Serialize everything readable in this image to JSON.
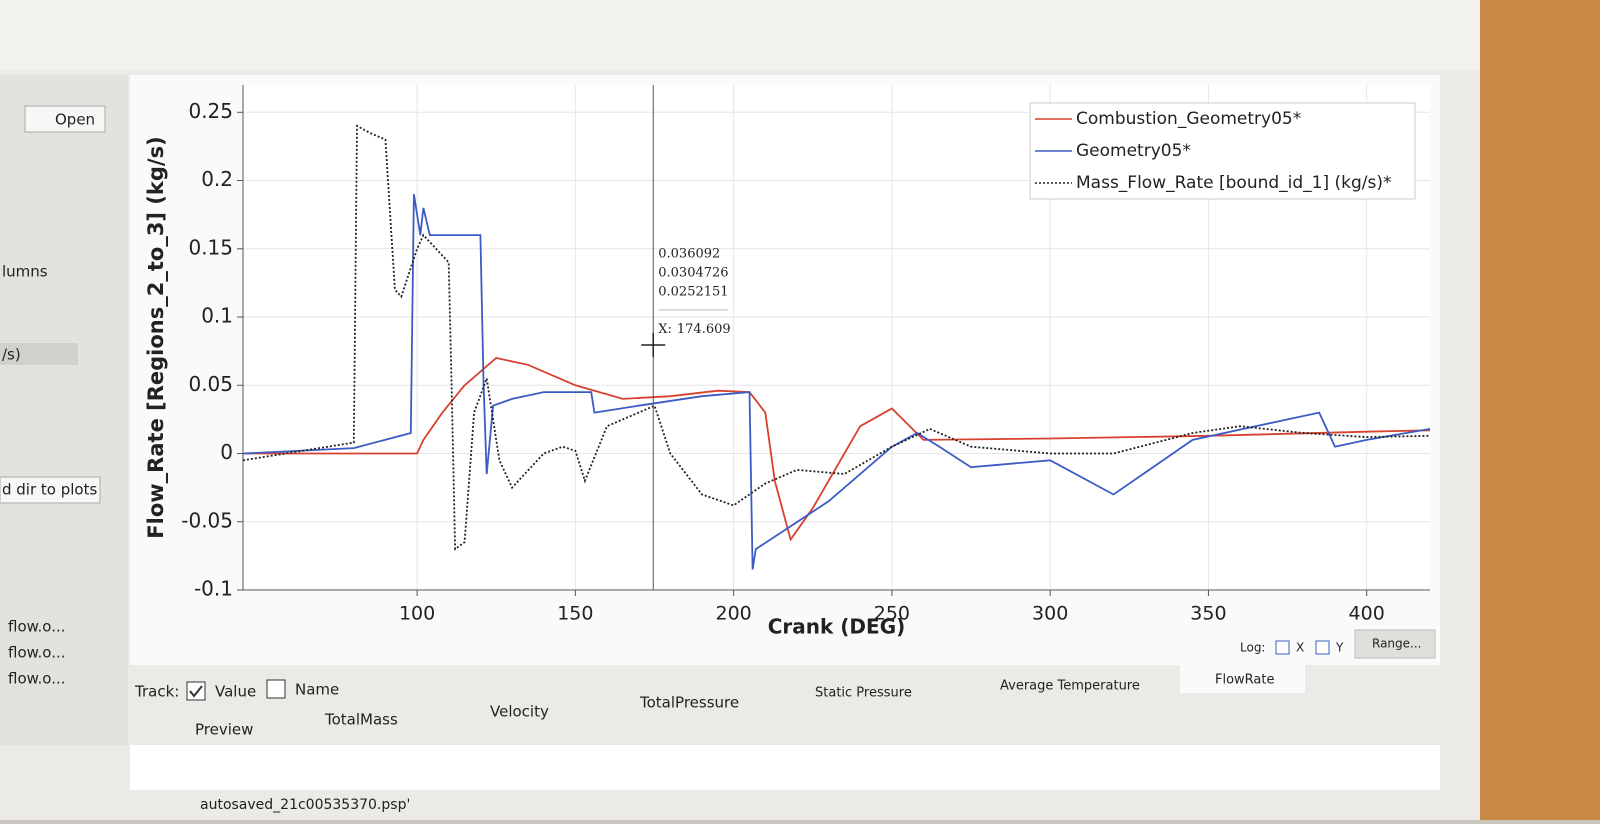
{
  "sidebar": {
    "open": "Open",
    "columns": "lumns",
    "unit": "/s)",
    "add": "d dir to plots",
    "files": [
      "flow.o...",
      "flow.o...",
      "flow.o..."
    ]
  },
  "chart_data": {
    "type": "line",
    "x_label": "Crank (DEG)",
    "y_label": "Flow_Rate [Regions_2_to_3] (kg/s)",
    "xlim": [
      45,
      420
    ],
    "ylim": [
      -0.1,
      0.27
    ],
    "xticks": [
      100,
      150,
      200,
      250,
      300,
      350,
      400
    ],
    "yticks": [
      -0.1,
      -0.05,
      0,
      0.05,
      0.1,
      0.15,
      0.2,
      0.25
    ],
    "grid": true,
    "legend": "top-right",
    "series": [
      {
        "name": "Combustion_Geometry05*",
        "color": "#d8412f",
        "line_style": "solid",
        "x": [
          45,
          100,
          102,
          108,
          115,
          125,
          135,
          150,
          165,
          180,
          195,
          205,
          210,
          213,
          218,
          225,
          240,
          250,
          260,
          300,
          350,
          400,
          420
        ],
        "values": [
          0,
          0,
          0.01,
          0.03,
          0.05,
          0.07,
          0.065,
          0.05,
          0.04,
          0.042,
          0.046,
          0.045,
          0.03,
          -0.02,
          -0.063,
          -0.04,
          0.02,
          0.033,
          0.01,
          0.011,
          0.013,
          0.016,
          0.017
        ]
      },
      {
        "name": "Geometry05*",
        "color": "#3a5cc4",
        "line_style": "solid",
        "x": [
          45,
          80,
          98,
          99,
          101,
          102,
          104,
          120,
          121,
          122,
          124,
          130,
          140,
          155,
          156,
          170,
          190,
          205,
          206,
          207,
          230,
          250,
          258,
          265,
          275,
          300,
          320,
          345,
          375,
          385,
          390,
          400,
          420
        ],
        "values": [
          0,
          0.004,
          0.015,
          0.19,
          0.16,
          0.18,
          0.16,
          0.16,
          0.05,
          -0.015,
          0.035,
          0.04,
          0.045,
          0.045,
          0.03,
          0.035,
          0.042,
          0.045,
          -0.085,
          -0.07,
          -0.035,
          0.005,
          0.015,
          0.005,
          -0.01,
          -0.005,
          -0.03,
          0.01,
          0.025,
          0.03,
          0.005,
          0.01,
          0.018
        ]
      },
      {
        "name": "Mass_Flow_Rate [bound_id_1] (kg/s)*",
        "color": "#222222",
        "line_style": "dotted",
        "x": [
          45,
          80,
          81,
          85,
          90,
          93,
          95,
          100,
          102,
          106,
          110,
          111,
          112,
          115,
          118,
          122,
          126,
          130,
          140,
          146,
          150,
          153,
          160,
          170,
          175,
          180,
          190,
          200,
          210,
          220,
          235,
          250,
          262,
          275,
          300,
          320,
          345,
          360,
          380,
          400,
          420
        ],
        "values": [
          -0.005,
          0.008,
          0.24,
          0.235,
          0.23,
          0.12,
          0.115,
          0.15,
          0.16,
          0.15,
          0.14,
          0.04,
          -0.07,
          -0.065,
          0.03,
          0.055,
          -0.005,
          -0.025,
          0,
          0.005,
          0.002,
          -0.02,
          0.02,
          0.03,
          0.035,
          0,
          -0.03,
          -0.038,
          -0.022,
          -0.012,
          -0.015,
          0.005,
          0.018,
          0.005,
          0,
          0,
          0.015,
          0.02,
          0.015,
          0.012,
          0.013
        ]
      }
    ],
    "cursor": {
      "label": "X:",
      "value": 174.609,
      "readouts": [
        0.036092,
        0.0304726,
        0.0252151
      ]
    }
  },
  "controls": {
    "log": "Log:",
    "x": "X",
    "y": "Y",
    "range": "Range..."
  },
  "track": {
    "label": "Track:",
    "value": "Value",
    "name": "Name"
  },
  "tabs": [
    "Preview",
    "TotalMass",
    "Velocity",
    "TotalPressure",
    "Static Pressure",
    "Average Temperature",
    "FlowRate"
  ],
  "status": "autosaved_21c00535370.psp'"
}
